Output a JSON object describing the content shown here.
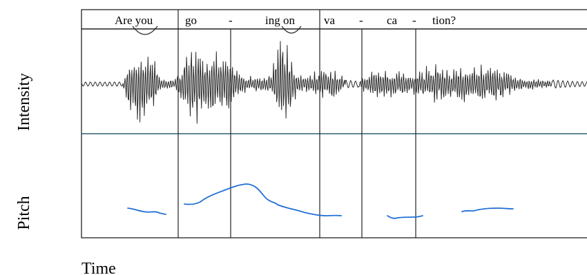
{
  "syllables": [
    "Are you",
    "go",
    "-",
    "ing on",
    "va",
    "-",
    "ca",
    "-",
    "tion?"
  ],
  "y_labels": {
    "intensity": "Intensity",
    "pitch": "Pitch"
  },
  "x_label": "Time",
  "colors": {
    "waveform": "#2b2b2b",
    "pitch": "#1f6fd6",
    "frame": "#222222",
    "baseline": "#2f5f6f"
  }
}
